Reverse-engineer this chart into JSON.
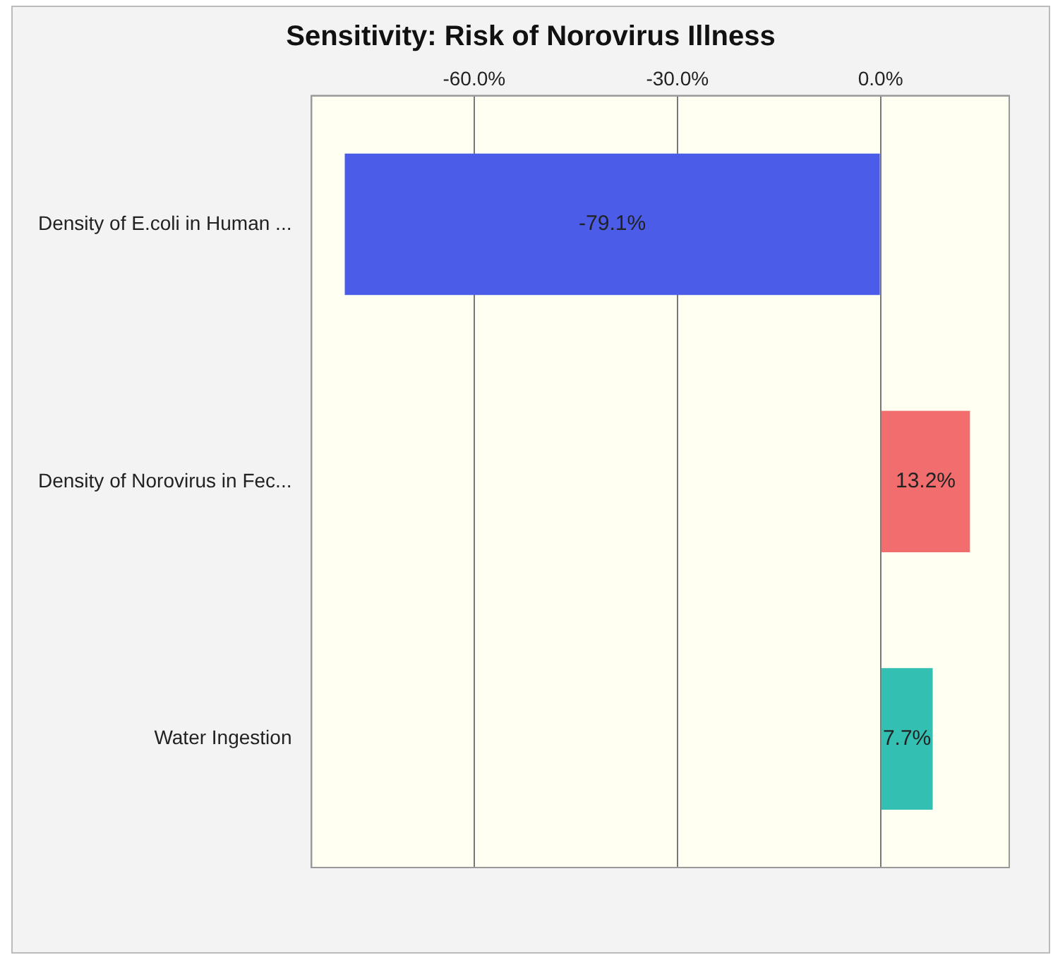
{
  "chart_data": {
    "type": "bar",
    "orientation": "horizontal",
    "title": "Sensitivity: Risk of Norovirus Illness",
    "categories": [
      "Density of E.coli in Human ...",
      "Density of Norovirus in Fec...",
      "Water Ingestion"
    ],
    "values": [
      -79.1,
      13.2,
      7.7
    ],
    "colors": [
      "#4a5ce8",
      "#f26d6d",
      "#33c0b2"
    ],
    "value_labels": [
      "-79.1%",
      "13.2%",
      "7.7%"
    ],
    "xlim": [
      -84,
      19
    ],
    "xticks": [
      {
        "value": -60,
        "label": "-60.0%"
      },
      {
        "value": -30,
        "label": "-30.0%"
      },
      {
        "value": 0,
        "label": "0.0%"
      }
    ],
    "grid": "x",
    "legend": false
  }
}
